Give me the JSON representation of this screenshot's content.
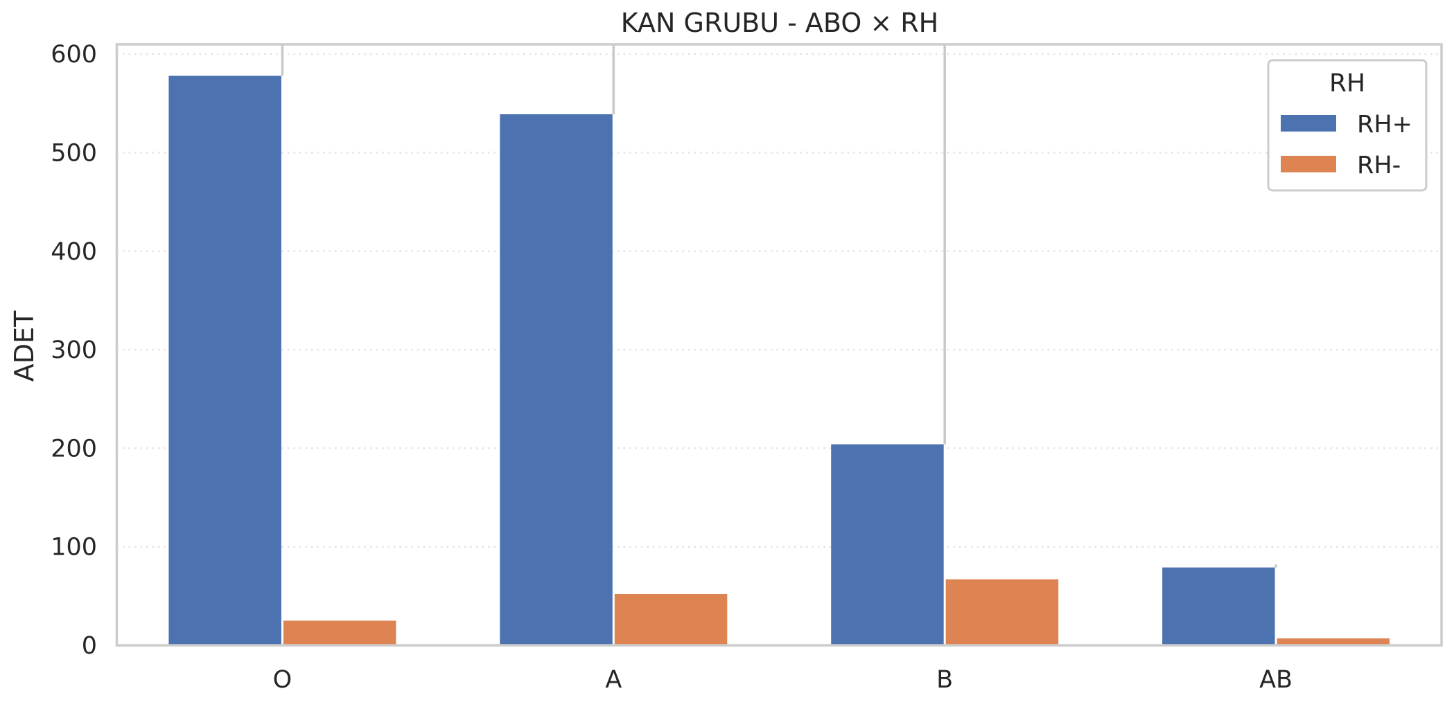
{
  "chart_data": {
    "type": "bar",
    "title": "KAN GRUBU - ABO × RH",
    "xlabel": "",
    "ylabel": "ADET",
    "categories": [
      "O",
      "A",
      "B",
      "AB"
    ],
    "series": [
      {
        "name": "RH+",
        "values": [
          578,
          539,
          204,
          79
        ],
        "color": "#4c72b0"
      },
      {
        "name": "RH-",
        "values": [
          25,
          52,
          67,
          7
        ],
        "color": "#dd8452"
      }
    ],
    "error_bar_tops": [
      610,
      610,
      610,
      82
    ],
    "ylim": [
      0,
      610
    ],
    "yticks": [
      0,
      100,
      200,
      300,
      400,
      500,
      600
    ],
    "grid": true,
    "legend": {
      "title": "RH",
      "placement": "top-right"
    }
  }
}
